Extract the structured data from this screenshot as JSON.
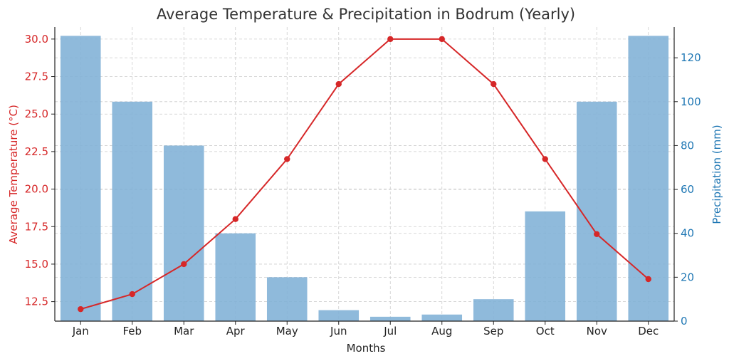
{
  "chart_data": {
    "type": "bar",
    "title": "Average Temperature & Precipitation in Bodrum (Yearly)",
    "xlabel": "Months",
    "categories": [
      "Jan",
      "Feb",
      "Mar",
      "Apr",
      "May",
      "Jun",
      "Jul",
      "Aug",
      "Sep",
      "Oct",
      "Nov",
      "Dec"
    ],
    "series": [
      {
        "type": "bar",
        "axis": "right",
        "values": [
          130,
          100,
          80,
          40,
          20,
          5,
          2,
          3,
          10,
          50,
          100,
          130
        ],
        "color": "#7fb0d6"
      },
      {
        "type": "line",
        "axis": "left",
        "values": [
          12,
          13,
          15,
          18,
          22,
          27,
          30,
          30,
          27,
          22,
          17,
          14
        ],
        "color": "#d62728"
      }
    ],
    "y_left": {
      "label": "Average Temperature (°C)",
      "ticks": [
        "12.5",
        "15.0",
        "17.5",
        "20.0",
        "22.5",
        "25.0",
        "27.5",
        "30.0"
      ],
      "ylim": [
        11.2,
        30.8
      ],
      "color": "#d62728"
    },
    "y_right": {
      "label": "Precipitation (mm)",
      "ticks": [
        "0",
        "20",
        "40",
        "60",
        "80",
        "100",
        "120"
      ],
      "ylim": [
        0,
        134
      ],
      "color": "#1f77b4"
    },
    "grid": true
  }
}
